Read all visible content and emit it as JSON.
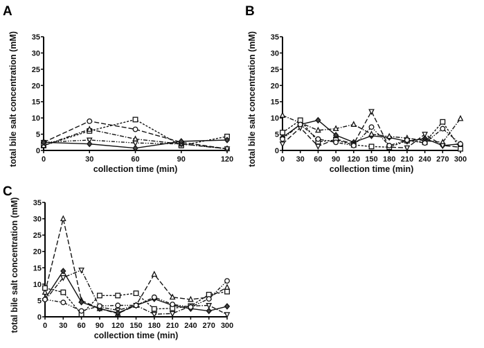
{
  "chart_data": [
    {
      "panel": "A",
      "type": "line",
      "xlabel": "collection time (min)",
      "ylabel": "total bile salt concentration (mM)",
      "x": [
        0,
        30,
        60,
        90,
        120
      ],
      "xticks": [
        "0",
        "30",
        "60",
        "90",
        "120"
      ],
      "ylim": [
        0,
        35
      ],
      "yticks": [
        "0",
        "5",
        "10",
        "15",
        "20",
        "25",
        "30",
        "35"
      ],
      "grid": false,
      "series": [
        {
          "marker": "circle",
          "dash": "long-dash",
          "values": [
            2.5,
            9,
            6.5,
            2.5,
            0.5
          ]
        },
        {
          "marker": "square",
          "dash": "short-dash",
          "values": [
            1.5,
            6,
            9.5,
            1.5,
            4.3
          ]
        },
        {
          "marker": "triangle-up",
          "dash": "dash-dot",
          "values": [
            1.5,
            6.5,
            3.5,
            2,
            0.5
          ]
        },
        {
          "marker": "triangle-down",
          "dash": "dash-dot-dot",
          "values": [
            2.5,
            3.2,
            2.3,
            2,
            0.5
          ]
        },
        {
          "marker": "diamond",
          "dash": "solid",
          "values": [
            2.5,
            2,
            0.7,
            2.8,
            3.2
          ]
        }
      ]
    },
    {
      "panel": "B",
      "type": "line",
      "xlabel": "collection time (min)",
      "ylabel": "total bile salt concentration (mM)",
      "x": [
        0,
        30,
        60,
        90,
        120,
        150,
        180,
        210,
        240,
        270,
        300
      ],
      "xticks": [
        "0",
        "30",
        "60",
        "90",
        "120",
        "150",
        "180",
        "210",
        "240",
        "270",
        "300"
      ],
      "ylim": [
        0,
        35
      ],
      "yticks": [
        "0",
        "5",
        "10",
        "15",
        "20",
        "25",
        "30",
        "35"
      ],
      "grid": false,
      "series": [
        {
          "marker": "diamond",
          "dash": "solid",
          "values": [
            4,
            8,
            9.3,
            4.7,
            2.5,
            4.5,
            4,
            2.8,
            3.7,
            1.5,
            2
          ]
        },
        {
          "marker": "triangle-up",
          "dash": "dash-dot",
          "values": [
            10.8,
            8.5,
            6.2,
            6.7,
            8,
            5,
            4.3,
            3.8,
            3,
            2.5,
            9.8
          ]
        },
        {
          "marker": "triangle-down",
          "dash": "long-dash",
          "values": [
            2,
            7,
            1.3,
            3.5,
            2,
            12,
            1,
            0.8,
            5,
            1.5,
            1
          ]
        },
        {
          "marker": "square",
          "dash": "short-dash",
          "values": [
            5.5,
            9.3,
            2.7,
            3.2,
            1.7,
            1.2,
            1,
            3,
            2.5,
            8.8,
            0.5
          ]
        },
        {
          "marker": "circle",
          "dash": "dash-dot-dot",
          "values": [
            3.5,
            8,
            3.5,
            2.5,
            1.5,
            7.2,
            1.5,
            3.2,
            2.3,
            6.7,
            2
          ]
        }
      ]
    },
    {
      "panel": "C",
      "type": "line",
      "xlabel": "collection time (min)",
      "ylabel": "total bile salt concentration (mM)",
      "x": [
        0,
        30,
        60,
        90,
        120,
        150,
        180,
        210,
        240,
        270,
        300
      ],
      "xticks": [
        "0",
        "30",
        "60",
        "90",
        "120",
        "150",
        "180",
        "210",
        "240",
        "270",
        "300"
      ],
      "ylim": [
        0,
        35
      ],
      "yticks": [
        "0",
        "5",
        "10",
        "15",
        "20",
        "25",
        "30",
        "35"
      ],
      "grid": false,
      "series": [
        {
          "marker": "triangle-up",
          "dash": "long-dash",
          "values": [
            7.5,
            30,
            5,
            2.5,
            1,
            3.5,
            13,
            6,
            5.3,
            6,
            9
          ]
        },
        {
          "marker": "triangle-down",
          "dash": "dash-dot",
          "values": [
            5,
            12,
            14.3,
            3,
            2,
            3.5,
            0.8,
            1,
            3.3,
            3.5,
            0.7
          ]
        },
        {
          "marker": "diamond",
          "dash": "solid",
          "values": [
            5.5,
            14,
            4.5,
            2.5,
            1.2,
            3.5,
            5.5,
            3.5,
            2.5,
            1.8,
            3.2
          ]
        },
        {
          "marker": "square",
          "dash": "short-dash",
          "values": [
            8.8,
            7.5,
            0.8,
            6.5,
            6.5,
            7.2,
            2.4,
            2.6,
            3.3,
            6.8,
            7.7
          ]
        },
        {
          "marker": "circle",
          "dash": "dash-dot-dot",
          "values": [
            5.3,
            4.4,
            1.8,
            3.3,
            3.5,
            3.5,
            6,
            3.8,
            3,
            5.5,
            11
          ]
        }
      ]
    }
  ]
}
